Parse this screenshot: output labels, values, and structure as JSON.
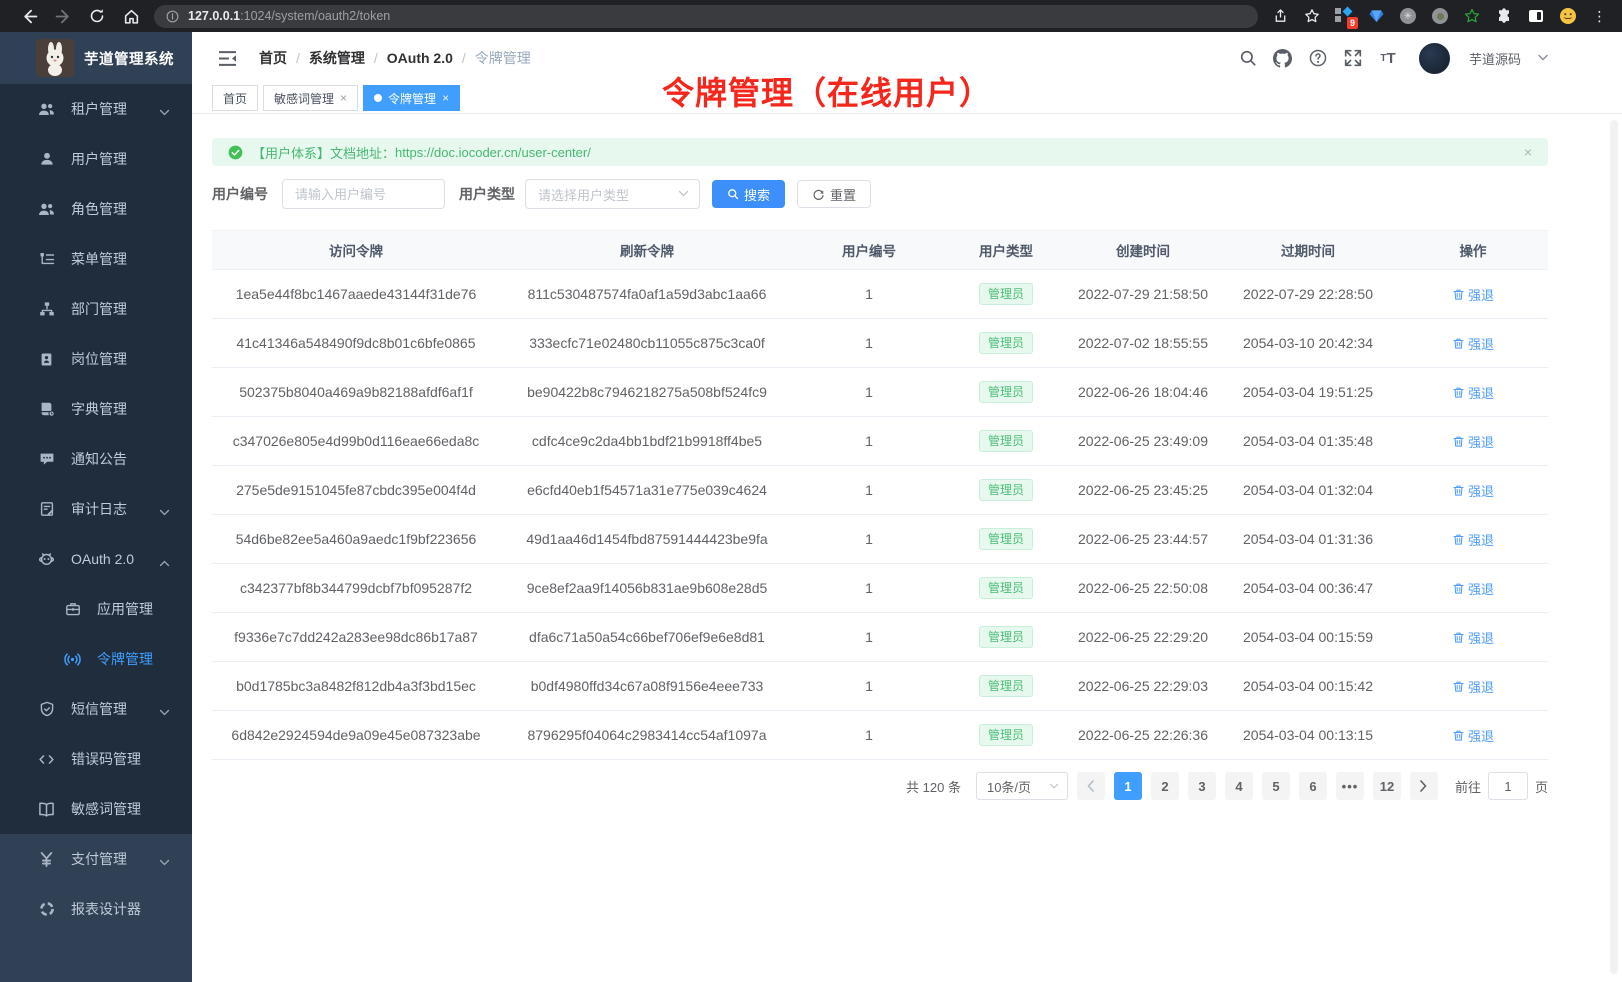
{
  "colors": {
    "primary": "#409eff",
    "success": "#47b871",
    "annotation_red": "#f5271c",
    "sidebar_dark": "#1f2d3d",
    "sidebar_light": "#304156"
  },
  "browser": {
    "url_host": "127.0.0.1",
    "url_rest": ":1024/system/oauth2/token",
    "extension_badge": "9"
  },
  "header": {
    "app_title": "芋道管理系统",
    "breadcrumb": [
      "首页",
      "系统管理",
      "OAuth 2.0",
      "令牌管理"
    ],
    "username": "芋道源码"
  },
  "annotation": {
    "text": "令牌管理（在线用户）"
  },
  "tabs": [
    {
      "label": "首页",
      "active": false,
      "closable": false
    },
    {
      "label": "敏感词管理",
      "active": false,
      "closable": true
    },
    {
      "label": "令牌管理",
      "active": true,
      "closable": true
    }
  ],
  "sidebar": {
    "items": [
      {
        "name": "tenant",
        "label": "租户管理",
        "icon": "tenant-icon",
        "chevron": "down"
      },
      {
        "name": "user",
        "label": "用户管理",
        "icon": "user-icon"
      },
      {
        "name": "role",
        "label": "角色管理",
        "icon": "role-icon"
      },
      {
        "name": "menu",
        "label": "菜单管理",
        "icon": "menu-icon"
      },
      {
        "name": "dept",
        "label": "部门管理",
        "icon": "dept-icon"
      },
      {
        "name": "post",
        "label": "岗位管理",
        "icon": "post-icon"
      },
      {
        "name": "dict",
        "label": "字典管理",
        "icon": "dict-icon"
      },
      {
        "name": "notice",
        "label": "通知公告",
        "icon": "notice-icon"
      },
      {
        "name": "audit",
        "label": "审计日志",
        "icon": "audit-icon",
        "chevron": "down"
      },
      {
        "name": "oauth2",
        "label": "OAuth 2.0",
        "icon": "oauth-icon",
        "chevron": "up"
      },
      {
        "name": "oauth2-app",
        "label": "应用管理",
        "icon": "app-icon",
        "sub": true
      },
      {
        "name": "oauth2-token",
        "label": "令牌管理",
        "icon": "token-icon",
        "sub": true,
        "active": true
      },
      {
        "name": "sms",
        "label": "短信管理",
        "icon": "sms-icon",
        "chevron": "down"
      },
      {
        "name": "errcode",
        "label": "错误码管理",
        "icon": "errcode-icon"
      },
      {
        "name": "sensitive",
        "label": "敏感词管理",
        "icon": "sensitive-icon"
      }
    ],
    "bottom_items": [
      {
        "name": "pay",
        "label": "支付管理",
        "icon": "pay-icon",
        "chevron": "down"
      },
      {
        "name": "report",
        "label": "报表设计器",
        "icon": "report-icon"
      }
    ]
  },
  "alert": {
    "text": "【用户体系】文档地址：",
    "link": "https://doc.iocoder.cn/user-center/"
  },
  "filters": {
    "user_id_label": "用户编号",
    "user_id_placeholder": "请输入用户编号",
    "user_type_label": "用户类型",
    "user_type_placeholder": "请选择用户类型",
    "search_label": "搜索",
    "reset_label": "重置"
  },
  "table": {
    "columns": [
      "访问令牌",
      "刷新令牌",
      "用户编号",
      "用户类型",
      "创建时间",
      "过期时间",
      "操作"
    ],
    "tag_label": "管理员",
    "action_label": "强退",
    "rows": [
      {
        "access": "1ea5e44f8bc1467aaede43144f31de76",
        "refresh": "811c530487574fa0af1a59d3abc1aa66",
        "user_id": "1",
        "user_type": "管理员",
        "created": "2022-07-29 21:58:50",
        "expires": "2022-07-29 22:28:50"
      },
      {
        "access": "41c41346a548490f9dc8b01c6bfe0865",
        "refresh": "333ecfc71e02480cb11055c875c3ca0f",
        "user_id": "1",
        "user_type": "管理员",
        "created": "2022-07-02 18:55:55",
        "expires": "2054-03-10 20:42:34"
      },
      {
        "access": "502375b8040a469a9b82188afdf6af1f",
        "refresh": "be90422b8c7946218275a508bf524fc9",
        "user_id": "1",
        "user_type": "管理员",
        "created": "2022-06-26 18:04:46",
        "expires": "2054-03-04 19:51:25"
      },
      {
        "access": "c347026e805e4d99b0d116eae66eda8c",
        "refresh": "cdfc4ce9c2da4bb1bdf21b9918ff4be5",
        "user_id": "1",
        "user_type": "管理员",
        "created": "2022-06-25 23:49:09",
        "expires": "2054-03-04 01:35:48"
      },
      {
        "access": "275e5de9151045fe87cbdc395e004f4d",
        "refresh": "e6cfd40eb1f54571a31e775e039c4624",
        "user_id": "1",
        "user_type": "管理员",
        "created": "2022-06-25 23:45:25",
        "expires": "2054-03-04 01:32:04"
      },
      {
        "access": "54d6be82ee5a460a9aedc1f9bf223656",
        "refresh": "49d1aa46d1454fbd87591444423be9fa",
        "user_id": "1",
        "user_type": "管理员",
        "created": "2022-06-25 23:44:57",
        "expires": "2054-03-04 01:31:36"
      },
      {
        "access": "c342377bf8b344799dcbf7bf095287f2",
        "refresh": "9ce8ef2aa9f14056b831ae9b608e28d5",
        "user_id": "1",
        "user_type": "管理员",
        "created": "2022-06-25 22:50:08",
        "expires": "2054-03-04 00:36:47"
      },
      {
        "access": "f9336e7c7dd242a283ee98dc86b17a87",
        "refresh": "dfa6c71a50a54c66bef706ef9e6e8d81",
        "user_id": "1",
        "user_type": "管理员",
        "created": "2022-06-25 22:29:20",
        "expires": "2054-03-04 00:15:59"
      },
      {
        "access": "b0d1785bc3a8482f812db4a3f3bd15ec",
        "refresh": "b0df4980ffd34c67a08f9156e4eee733",
        "user_id": "1",
        "user_type": "管理员",
        "created": "2022-06-25 22:29:03",
        "expires": "2054-03-04 00:15:42"
      },
      {
        "access": "6d842e2924594de9a09e45e087323abe",
        "refresh": "8796295f04064c2983414cc54af1097a",
        "user_id": "1",
        "user_type": "管理员",
        "created": "2022-06-25 22:26:36",
        "expires": "2054-03-04 00:13:15"
      }
    ]
  },
  "pagination": {
    "total": "共 120 条",
    "page_size": "10条/页",
    "pages": [
      "1",
      "2",
      "3",
      "4",
      "5",
      "6",
      "•••",
      "12"
    ],
    "active_page": "1",
    "goto_label": "前往",
    "goto_value": "1",
    "goto_unit": "页"
  }
}
